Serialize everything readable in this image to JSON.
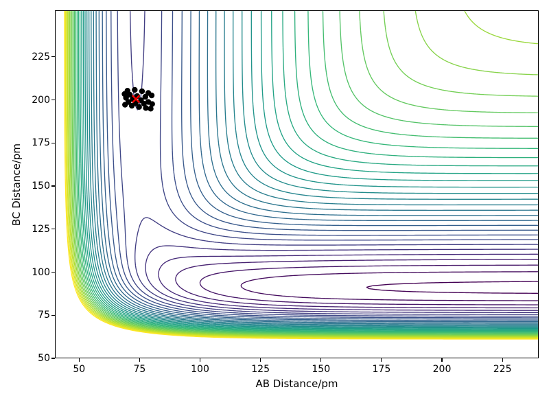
{
  "figure": {
    "background": "#ffffff"
  },
  "axes": {
    "xlabel": "AB Distance/pm",
    "ylabel": "BC Distance/pm",
    "xticks": [
      50,
      75,
      100,
      125,
      150,
      175,
      200,
      225
    ],
    "yticks": [
      50,
      75,
      100,
      125,
      150,
      175,
      200,
      225
    ]
  },
  "chart_data": {
    "type": "contour",
    "title": "",
    "xlabel": "AB Distance/pm",
    "ylabel": "BC Distance/pm",
    "xrange": [
      40,
      240
    ],
    "yrange": [
      50,
      252
    ],
    "grid": false,
    "legend": "none",
    "colormap": "viridis",
    "n_levels": 34,
    "levels": {
      "min": -1.24,
      "max": 0.12,
      "count": 34
    },
    "surface": "LEPS-type potential energy surface for collinear A-B-C reaction; repulsive walls at short distances (yellow), AB entrance valley near AB=74 pm (blue), deeper BC product valley near BC=91 pm (dark purple), flat dissociation plateau at top right (white)",
    "potential_params": {
      "sato": 0.15,
      "AB": {
        "D": 1.0,
        "re": 74,
        "a": 0.024
      },
      "BC": {
        "D": 1.25,
        "re": 91,
        "a": 0.024
      },
      "AC": {
        "D": 1.0,
        "re": 80,
        "a": 0.02
      }
    },
    "valleys": {
      "vertical_valley_AB_pm": 74,
      "horizontal_valley_BC_pm": 91
    },
    "marker": {
      "type": "x",
      "color": "#ff0000",
      "x": 73.5,
      "y": 200.5
    },
    "trajectory": {
      "marker": "o",
      "color": "#000000",
      "points": [
        [
          70,
          205.3
        ],
        [
          73,
          205.8
        ],
        [
          76,
          205
        ],
        [
          78.6,
          204
        ],
        [
          80,
          202.6
        ],
        [
          77.4,
          201.8
        ],
        [
          74,
          202.2
        ],
        [
          71,
          203
        ],
        [
          68.8,
          203.4
        ],
        [
          69.4,
          201.2
        ],
        [
          72.2,
          200.4
        ],
        [
          75.6,
          199.8
        ],
        [
          78.6,
          198.8
        ],
        [
          80.2,
          197.6
        ],
        [
          76.8,
          197.8
        ],
        [
          73.4,
          198.2
        ],
        [
          70.4,
          198.8
        ],
        [
          69,
          197.2
        ],
        [
          71.8,
          196.6
        ],
        [
          74.8,
          195.9
        ],
        [
          77.6,
          195.3
        ],
        [
          79.6,
          194.9
        ]
      ]
    }
  }
}
